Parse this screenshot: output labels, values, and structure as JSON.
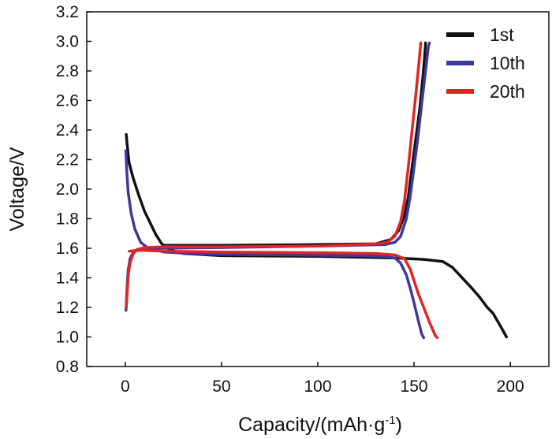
{
  "chart_data": {
    "type": "line",
    "title": "",
    "xlabel": "Capacity/(mAh·g",
    "xlabel_sup": "-1",
    "xlabel_end": ")",
    "ylabel": "Voltage/V",
    "xlim": [
      -20,
      220
    ],
    "ylim": [
      0.8,
      3.2
    ],
    "xticks": [
      0,
      50,
      100,
      150,
      200
    ],
    "xtick_labels": [
      "0",
      "50",
      "100",
      "150",
      "200"
    ],
    "yticks": [
      0.8,
      1.0,
      1.2,
      1.4,
      1.6,
      1.8,
      2.0,
      2.2,
      2.4,
      2.6,
      2.8,
      3.0,
      3.2
    ],
    "ytick_labels": [
      "0.8",
      "1.0",
      "1.2",
      "1.4",
      "1.6",
      "1.8",
      "2.0",
      "2.2",
      "2.4",
      "2.6",
      "2.8",
      "3.0",
      "3.2"
    ],
    "legend_position": "top-right",
    "series": [
      {
        "name": "1st",
        "color": "#111111",
        "curves": [
          [
            [
              0.5,
              2.37
            ],
            [
              1,
              2.3
            ],
            [
              2,
              2.18
            ],
            [
              4,
              2.08
            ],
            [
              7,
              1.96
            ],
            [
              10,
              1.85
            ],
            [
              13,
              1.77
            ],
            [
              16,
              1.69
            ],
            [
              19,
              1.63
            ],
            [
              23,
              1.59
            ],
            [
              30,
              1.565
            ],
            [
              50,
              1.55
            ],
            [
              100,
              1.545
            ],
            [
              140,
              1.535
            ],
            [
              155,
              1.525
            ],
            [
              165,
              1.51
            ],
            [
              170,
              1.47
            ],
            [
              175,
              1.4
            ],
            [
              180,
              1.33
            ],
            [
              184,
              1.27
            ],
            [
              188,
              1.2
            ],
            [
              191,
              1.16
            ],
            [
              195,
              1.07
            ],
            [
              198,
              1.0
            ]
          ],
          [
            [
              156,
              2.99
            ],
            [
              155.5,
              2.9
            ],
            [
              154.5,
              2.75
            ],
            [
              153,
              2.55
            ],
            [
              151,
              2.35
            ],
            [
              149,
              2.15
            ],
            [
              147,
              1.95
            ],
            [
              145,
              1.82
            ],
            [
              142,
              1.72
            ],
            [
              138,
              1.66
            ],
            [
              130,
              1.63
            ],
            [
              100,
              1.625
            ],
            [
              50,
              1.62
            ],
            [
              20,
              1.62
            ]
          ]
        ]
      },
      {
        "name": "10th",
        "color": "#3b3a9c",
        "curves": [
          [
            [
              0.3,
              2.26
            ],
            [
              0.8,
              2.12
            ],
            [
              1.5,
              1.98
            ],
            [
              3,
              1.84
            ],
            [
              5,
              1.73
            ],
            [
              8,
              1.64
            ],
            [
              12,
              1.6
            ],
            [
              20,
              1.575
            ],
            [
              40,
              1.56
            ],
            [
              80,
              1.555
            ],
            [
              120,
              1.55
            ],
            [
              135,
              1.545
            ],
            [
              140,
              1.535
            ],
            [
              143,
              1.5
            ],
            [
              146,
              1.42
            ],
            [
              148,
              1.33
            ],
            [
              150,
              1.23
            ],
            [
              152,
              1.12
            ],
            [
              154,
              1.02
            ],
            [
              155,
              0.995
            ]
          ],
          [
            [
              0.4,
              1.18
            ],
            [
              0.6,
              1.24
            ],
            [
              1,
              1.35
            ],
            [
              1.5,
              1.45
            ],
            [
              2.5,
              1.53
            ],
            [
              4,
              1.57
            ],
            [
              6,
              1.59
            ],
            [
              10,
              1.6
            ],
            [
              20,
              1.6
            ],
            [
              50,
              1.605
            ],
            [
              100,
              1.615
            ],
            [
              135,
              1.625
            ],
            [
              140,
              1.64
            ],
            [
              143,
              1.68
            ],
            [
              146,
              1.8
            ],
            [
              148,
              1.95
            ],
            [
              150,
              2.15
            ],
            [
              152,
              2.35
            ],
            [
              154,
              2.58
            ],
            [
              156,
              2.8
            ],
            [
              157.5,
              2.97
            ],
            [
              158,
              2.99
            ]
          ]
        ]
      },
      {
        "name": "20th",
        "color": "#e02525",
        "curves": [
          [
            [
              2,
              1.58
            ],
            [
              5,
              1.585
            ],
            [
              10,
              1.585
            ],
            [
              20,
              1.58
            ],
            [
              50,
              1.575
            ],
            [
              100,
              1.57
            ],
            [
              130,
              1.565
            ],
            [
              140,
              1.555
            ],
            [
              145,
              1.53
            ],
            [
              148,
              1.46
            ],
            [
              150,
              1.38
            ],
            [
              152,
              1.3
            ],
            [
              155,
              1.2
            ],
            [
              158,
              1.1
            ],
            [
              161,
              1.01
            ],
            [
              162,
              0.995
            ]
          ],
          [
            [
              0.5,
              1.2
            ],
            [
              1,
              1.3
            ],
            [
              1.6,
              1.42
            ],
            [
              2.5,
              1.5
            ],
            [
              4,
              1.56
            ],
            [
              6,
              1.59
            ],
            [
              10,
              1.605
            ],
            [
              20,
              1.61
            ],
            [
              50,
              1.61
            ],
            [
              100,
              1.615
            ],
            [
              130,
              1.63
            ],
            [
              136,
              1.64
            ],
            [
              140,
              1.68
            ],
            [
              143,
              1.78
            ],
            [
              145,
              1.92
            ],
            [
              147,
              2.15
            ],
            [
              149,
              2.4
            ],
            [
              151,
              2.65
            ],
            [
              152.5,
              2.85
            ],
            [
              153.5,
              2.99
            ]
          ]
        ]
      }
    ]
  }
}
